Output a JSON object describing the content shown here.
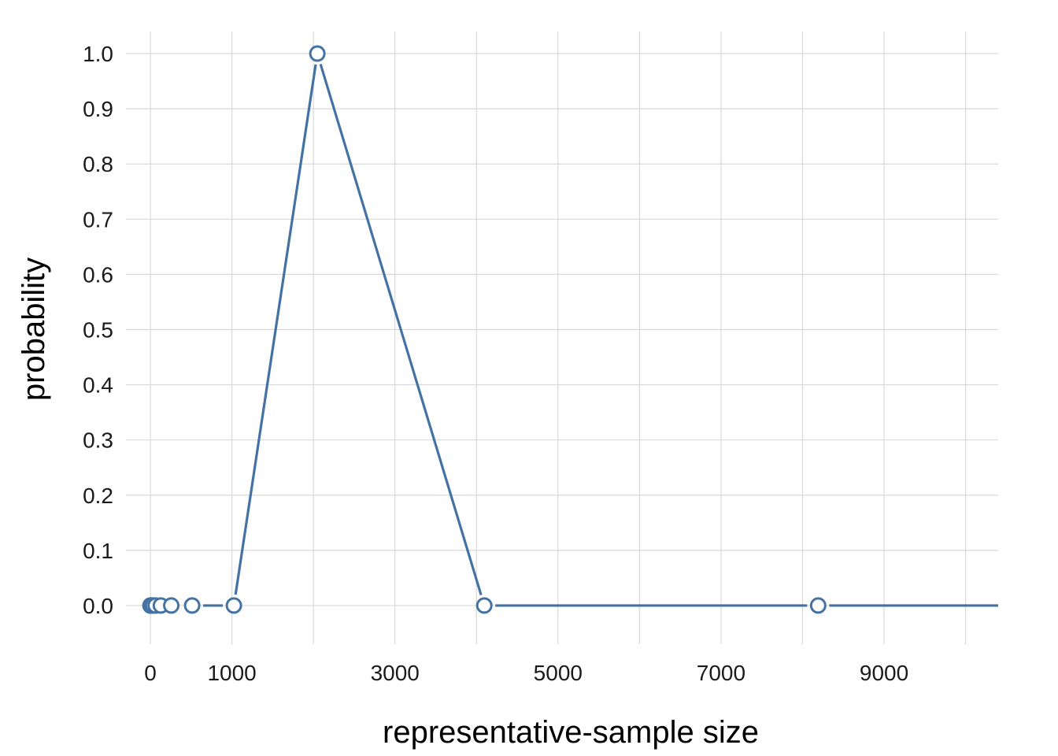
{
  "chart_data": {
    "type": "line",
    "xlabel": "representative-sample size",
    "ylabel": "probability",
    "xlim": [
      -300,
      10400
    ],
    "ylim": [
      -0.07,
      1.04
    ],
    "x_ticks": [
      0,
      1000,
      3000,
      5000,
      7000,
      9000
    ],
    "x_gridlines": [
      0,
      1000,
      2000,
      3000,
      4000,
      5000,
      6000,
      7000,
      8000,
      9000,
      10000
    ],
    "y_ticks": [
      0.0,
      0.1,
      0.2,
      0.3,
      0.4,
      0.5,
      0.6,
      0.7,
      0.8,
      0.9,
      1.0
    ],
    "y_tick_labels": [
      "0.0",
      "0.1",
      "0.2",
      "0.3",
      "0.4",
      "0.5",
      "0.6",
      "0.7",
      "0.8",
      "0.9",
      "1.0"
    ],
    "grid": true,
    "line_extends_to_x": 10400,
    "series": [
      {
        "color": "#4472a3",
        "x": [
          1,
          2,
          4,
          8,
          16,
          32,
          64,
          128,
          256,
          512,
          1024,
          2048,
          4096,
          8192
        ],
        "y": [
          0,
          0,
          0,
          0,
          0,
          0,
          0,
          0,
          0,
          0,
          0,
          1.0,
          0,
          0
        ]
      }
    ]
  }
}
